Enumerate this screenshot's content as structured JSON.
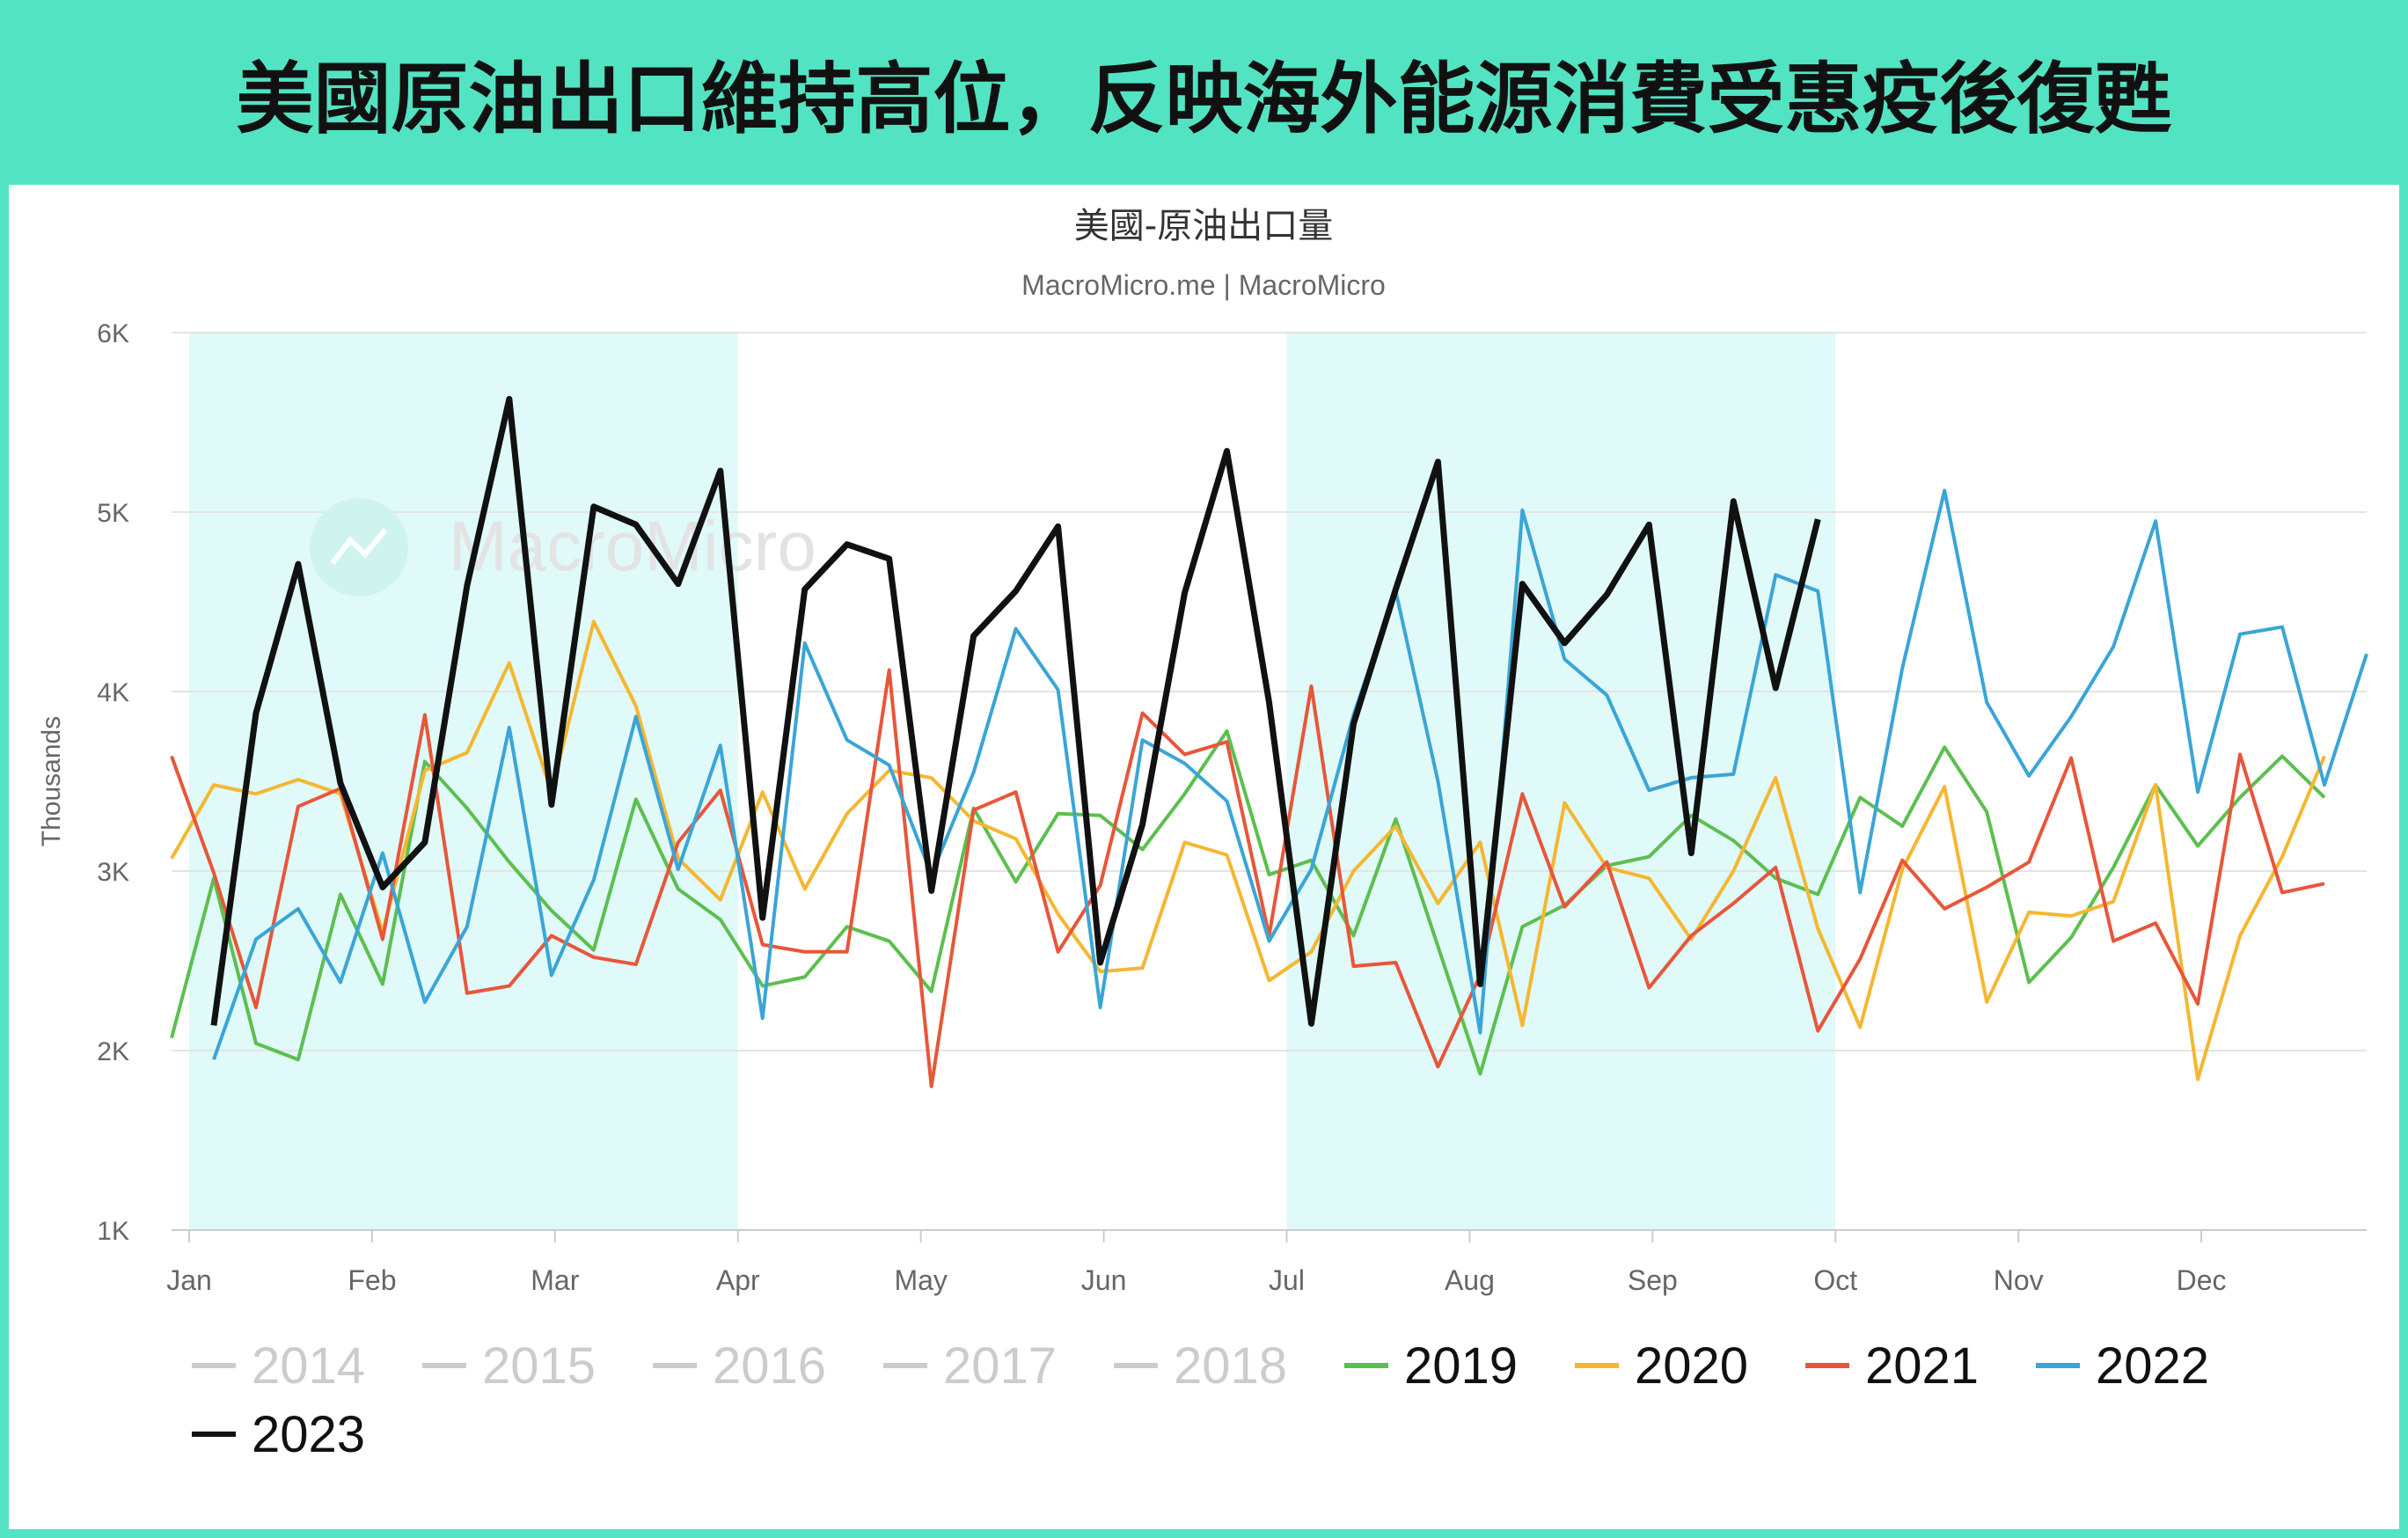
{
  "headline": "美國原油出口維持高位，反映海外能源消費受惠疫後復甦",
  "chart_data": {
    "type": "line",
    "title": "美國-原油出口量",
    "subtitle": "MacroMicro.me | MacroMicro",
    "watermark": "MacroMicro",
    "ylabel": "Thousands",
    "ylim": [
      1000,
      6000
    ],
    "y_ticks": [
      1000,
      2000,
      3000,
      4000,
      5000,
      6000
    ],
    "y_tick_labels": [
      "1K",
      "2K",
      "3K",
      "4K",
      "5K",
      "6K"
    ],
    "months": [
      "Jan",
      "Feb",
      "Mar",
      "Apr",
      "May",
      "Jun",
      "Jul",
      "Aug",
      "Sep",
      "Oct",
      "Nov",
      "Dec"
    ],
    "shaded_ranges": [
      [
        "Jan",
        "Apr"
      ],
      [
        "Jul",
        "Oct"
      ]
    ],
    "grid": true,
    "legend_position": "bottom",
    "x_unit": "week of year",
    "hidden_series": [
      "2014",
      "2015",
      "2016",
      "2017",
      "2018"
    ],
    "series": [
      {
        "name": "2019",
        "color": "#5cbf4f",
        "x": [
          1,
          2,
          3,
          4,
          5,
          6,
          7,
          8,
          9,
          10,
          11,
          12,
          13,
          14,
          15,
          16,
          17,
          18,
          19,
          20,
          21,
          22,
          23,
          24,
          25,
          26,
          27,
          28,
          29,
          30,
          31,
          32,
          33,
          34,
          35,
          36,
          37,
          38,
          39,
          40,
          41,
          42,
          43,
          44,
          45,
          46,
          47,
          48,
          49,
          50,
          51,
          52
        ],
        "values": [
          2070,
          2960,
          2040,
          1950,
          2870,
          2370,
          3610,
          3350,
          3050,
          2780,
          2560,
          3400,
          2900,
          2730,
          2360,
          2410,
          2690,
          2610,
          2330,
          3350,
          2940,
          3320,
          3310,
          3120,
          3430,
          3780,
          2980,
          3060,
          2640,
          3290,
          2580,
          1870,
          2690,
          2810,
          3030,
          3080,
          3310,
          3170,
          2960,
          2870,
          3410,
          3250,
          3690,
          3330,
          2380,
          2630,
          3020,
          3480,
          3140,
          3410,
          3640,
          3410
        ]
      },
      {
        "name": "2020",
        "color": "#f5b731",
        "x": [
          1,
          2,
          3,
          4,
          5,
          6,
          7,
          8,
          9,
          10,
          11,
          12,
          13,
          14,
          15,
          16,
          17,
          18,
          19,
          20,
          21,
          22,
          23,
          24,
          25,
          26,
          27,
          28,
          29,
          30,
          31,
          32,
          33,
          34,
          35,
          36,
          37,
          38,
          39,
          40,
          41,
          42,
          43,
          44,
          45,
          46,
          47,
          48,
          49,
          50,
          51,
          52
        ],
        "values": [
          3070,
          3480,
          3430,
          3510,
          3430,
          2660,
          3560,
          3660,
          4160,
          3440,
          4390,
          3920,
          3070,
          2840,
          3440,
          2900,
          3320,
          3560,
          3520,
          3280,
          3180,
          2760,
          2440,
          2460,
          3160,
          3090,
          2390,
          2550,
          3000,
          3250,
          2820,
          3160,
          2140,
          3380,
          3020,
          2960,
          2620,
          3000,
          3520,
          2680,
          2130,
          3010,
          3470,
          2270,
          2770,
          2750,
          2830,
          3480,
          1840,
          2640,
          3080,
          3640
        ]
      },
      {
        "name": "2021",
        "color": "#e8563a",
        "x": [
          1,
          2,
          3,
          4,
          5,
          6,
          7,
          8,
          9,
          10,
          11,
          12,
          13,
          14,
          15,
          16,
          17,
          18,
          19,
          20,
          21,
          22,
          23,
          24,
          25,
          26,
          27,
          28,
          29,
          30,
          31,
          32,
          33,
          34,
          35,
          36,
          37,
          38,
          39,
          40,
          41,
          42,
          43,
          44,
          45,
          46,
          47,
          48,
          49,
          50,
          51,
          52
        ],
        "values": [
          3640,
          2990,
          2240,
          3360,
          3460,
          2620,
          3870,
          2320,
          2360,
          2640,
          2520,
          2480,
          3160,
          3450,
          2590,
          2550,
          2550,
          4120,
          1800,
          3340,
          3440,
          2550,
          2920,
          3880,
          3650,
          3720,
          2640,
          4030,
          2470,
          2490,
          1910,
          2420,
          3430,
          2800,
          3050,
          2350,
          2640,
          2820,
          3020,
          2110,
          2510,
          3060,
          2790,
          2910,
          3050,
          3630,
          2610,
          2710,
          2260,
          3650,
          2880,
          2930
        ]
      },
      {
        "name": "2022",
        "color": "#3aa5d6",
        "x": [
          2,
          3,
          4,
          5,
          6,
          7,
          8,
          9,
          10,
          11,
          12,
          13,
          14,
          15,
          16,
          17,
          18,
          19,
          20,
          21,
          22,
          23,
          24,
          25,
          26,
          27,
          28,
          29,
          30,
          31,
          32,
          33,
          34,
          35,
          36,
          37,
          38,
          39,
          40,
          41,
          42,
          43,
          44,
          45,
          46,
          47,
          48,
          49,
          50,
          51,
          52,
          53
        ],
        "values": [
          1950,
          2620,
          2790,
          2380,
          3100,
          2270,
          2690,
          3800,
          2420,
          2950,
          3860,
          3010,
          3700,
          2180,
          4270,
          3730,
          3590,
          2980,
          3550,
          4350,
          4010,
          2240,
          3730,
          3600,
          3390,
          2610,
          3010,
          3870,
          4560,
          3500,
          2100,
          5010,
          4180,
          3980,
          3450,
          3520,
          3540,
          4650,
          4560,
          2880,
          4130,
          5120,
          3940,
          3530,
          3860,
          4250,
          4950,
          3440,
          4320,
          4360,
          3480,
          4210
        ]
      },
      {
        "name": "2023",
        "color": "#111111",
        "x": [
          2,
          3,
          4,
          5,
          6,
          7,
          8,
          9,
          10,
          11,
          12,
          13,
          14,
          15,
          16,
          17,
          18,
          19,
          20,
          21,
          22,
          23,
          24,
          25,
          26,
          27,
          28,
          29,
          30,
          31,
          32,
          33,
          34,
          35,
          36,
          37,
          38,
          39,
          40
        ],
        "values": [
          2140,
          3880,
          4710,
          3490,
          2910,
          3160,
          4590,
          5630,
          3370,
          5030,
          4930,
          4600,
          5230,
          2740,
          4570,
          4820,
          4740,
          2890,
          4310,
          4560,
          4920,
          2490,
          3260,
          4550,
          5340,
          3940,
          2150,
          3820,
          4570,
          5280,
          2370,
          4600,
          4270,
          4540,
          4930,
          3100,
          5060,
          4020,
          4960
        ]
      }
    ]
  }
}
